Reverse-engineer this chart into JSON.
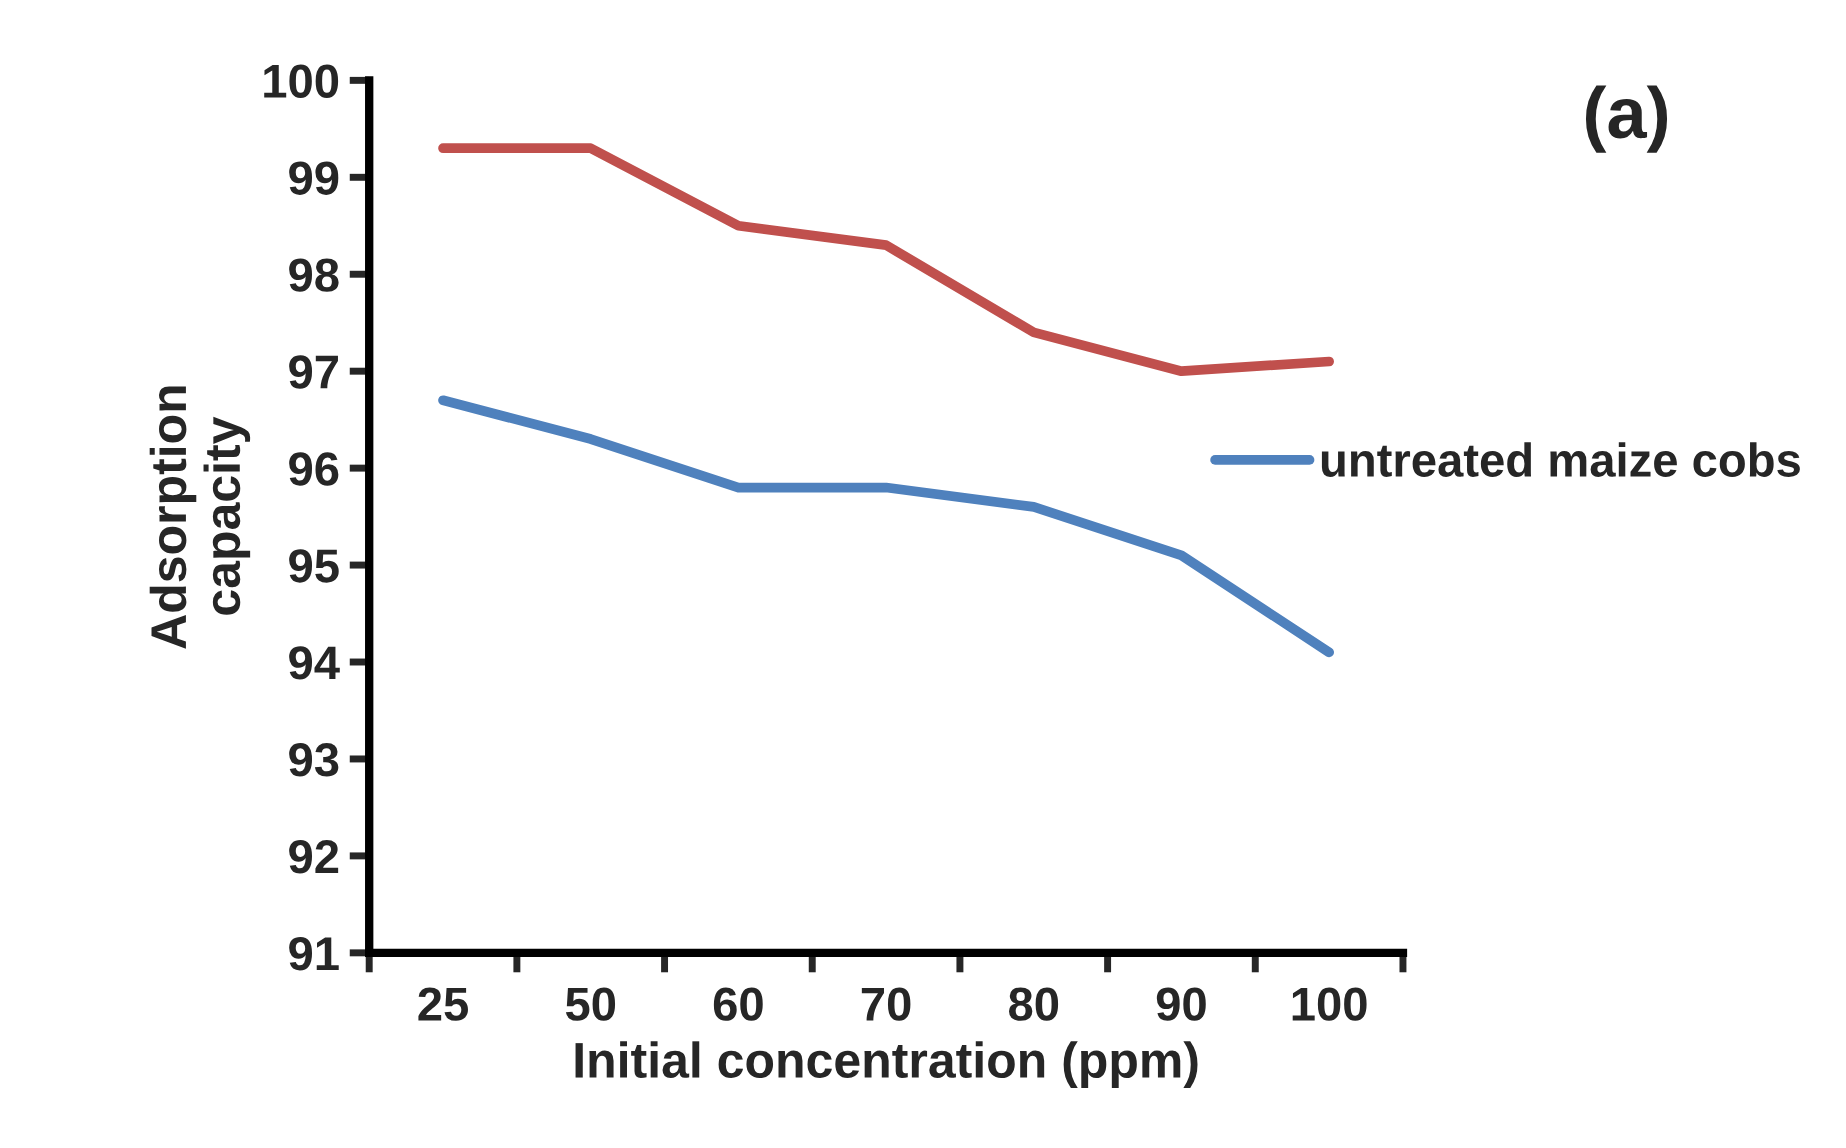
{
  "chart_data": {
    "type": "line",
    "xlabel": "Initial concentration (ppm)",
    "ylabel": "Adsorption\ncapacity",
    "categories": [
      "25",
      "50",
      "60",
      "70",
      "80",
      "90",
      "100"
    ],
    "series": [
      {
        "color": "#c0504d",
        "values": [
          99.3,
          99.3,
          98.5,
          98.3,
          97.4,
          97.0,
          97.1
        ]
      },
      {
        "name": "untreated maize cobs",
        "color": "#4f81bd",
        "values": [
          96.7,
          96.3,
          95.8,
          95.8,
          95.6,
          95.1,
          94.1
        ]
      }
    ],
    "ylim": [
      91,
      100
    ],
    "yticks": [
      91,
      92,
      93,
      94,
      95,
      96,
      97,
      98,
      99,
      100
    ],
    "annotations": [
      "(a)"
    ],
    "legend": "right",
    "grid": false,
    "marker": "none",
    "line_style": "solid"
  }
}
